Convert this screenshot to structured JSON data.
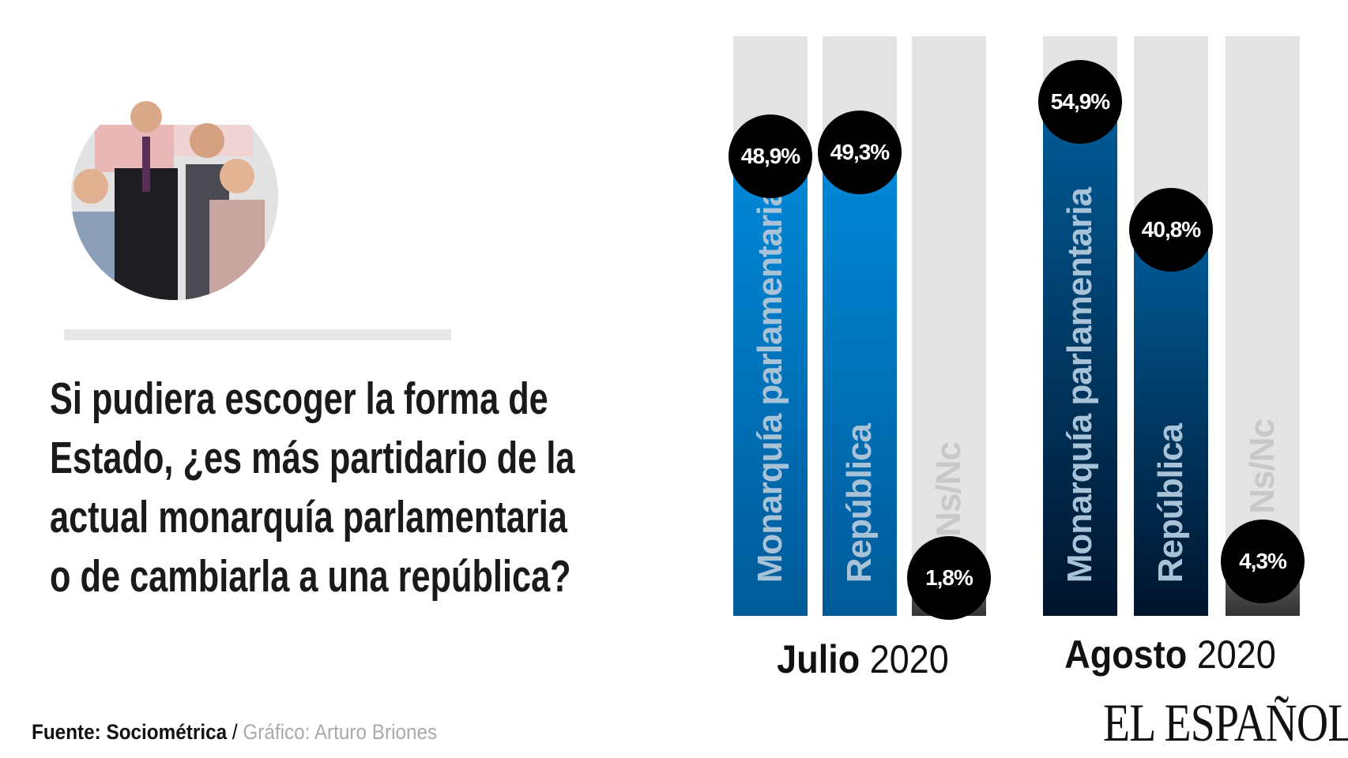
{
  "title": "Si pudiera escoger la forma de Estado, ¿es más partidario de la actual monarquía parlamentaria o de cambiarla a una república?",
  "title_lines": [
    "Si pudiera escoger la forma de",
    "Estado, ¿es más partidario de la",
    "actual monarquía parlamentaria",
    "o de cambiarla a una república?"
  ],
  "footer": {
    "source": "Fuente: Sociométrica",
    "separator": " / ",
    "credit": "Gráfico: Arturo Briones"
  },
  "logo": "EL ESPAÑOL",
  "photo": {
    "icon": "royal-family-photo"
  },
  "colors": {
    "julio_top": "#0089d9",
    "julio_bottom": "#005a98",
    "agosto_top": "#005c98",
    "agosto_bottom": "#00142c",
    "nsnc_fill_top": "#666666",
    "nsnc_fill_bottom": "#333333",
    "track": "#e3e3e3",
    "bar_label": "#a8c2d8",
    "nsnc_label": "#c8c8c8"
  },
  "chart_data": {
    "type": "bar",
    "title": "",
    "categories": [
      "Monarquía parlamentaria",
      "República",
      "Ns/Nc"
    ],
    "groups": [
      {
        "month": "Julio",
        "year": "2020",
        "values": [
          48.9,
          49.3,
          1.8
        ],
        "labels": [
          "48,9%",
          "49,3%",
          "1,8%"
        ]
      },
      {
        "month": "Agosto",
        "year": "2020",
        "values": [
          54.9,
          40.8,
          4.3
        ],
        "labels": [
          "54,9%",
          "40,8%",
          "4,3%"
        ]
      }
    ],
    "unit": "%",
    "grid": false
  }
}
